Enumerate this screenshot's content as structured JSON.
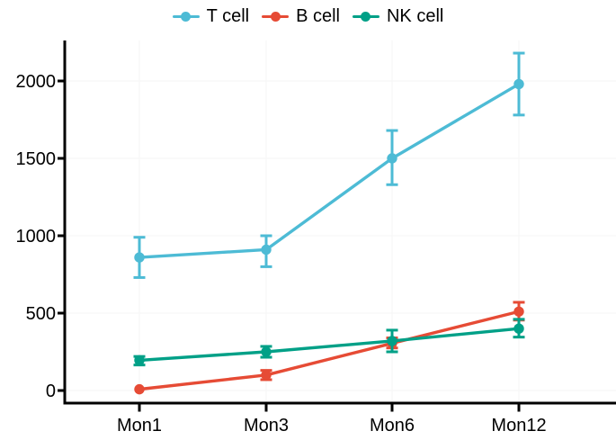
{
  "figure": {
    "background": "#ffffff",
    "axis_color": "#000000",
    "gridline_color": "#f6f6f6",
    "text_color": "#000000"
  },
  "legend": {
    "position": "top-center",
    "items": [
      {
        "label": "T cell",
        "color": "#4DBBD5",
        "marker": "dot-with-line-icon"
      },
      {
        "label": "B cell",
        "color": "#E64B35",
        "marker": "dot-with-line-icon"
      },
      {
        "label": "NK cell",
        "color": "#00A087",
        "marker": "dot-with-line-icon"
      }
    ]
  },
  "chart_data": {
    "type": "line",
    "title": "",
    "xlabel": "",
    "ylabel": "",
    "categories": [
      "Mon1",
      "Mon3",
      "Mon6",
      "Mon12"
    ],
    "series": [
      {
        "name": "T cell",
        "color": "#4DBBD5",
        "values": [
          860,
          910,
          1500,
          1980
        ],
        "error_low": [
          730,
          800,
          1330,
          1780
        ],
        "error_high": [
          990,
          1000,
          1680,
          2180
        ]
      },
      {
        "name": "B cell",
        "color": "#E64B35",
        "values": [
          8,
          100,
          305,
          510
        ],
        "error_low": [
          8,
          70,
          275,
          455
        ],
        "error_high": [
          8,
          130,
          340,
          570
        ]
      },
      {
        "name": "NK cell",
        "color": "#00A087",
        "values": [
          195,
          250,
          320,
          400
        ],
        "error_low": [
          165,
          215,
          250,
          345
        ],
        "error_high": [
          220,
          285,
          390,
          460
        ]
      }
    ],
    "y_ticks": [
      0,
      500,
      1000,
      1500,
      2000
    ],
    "y_tick_labels": [
      "0",
      "500",
      "1000",
      "1500",
      "2000"
    ],
    "ylim": [
      0,
      2260
    ],
    "grid": "very-faint",
    "legend_position": "top",
    "marker_style": "circle-with-error-bars",
    "errorbar_cap": true
  }
}
